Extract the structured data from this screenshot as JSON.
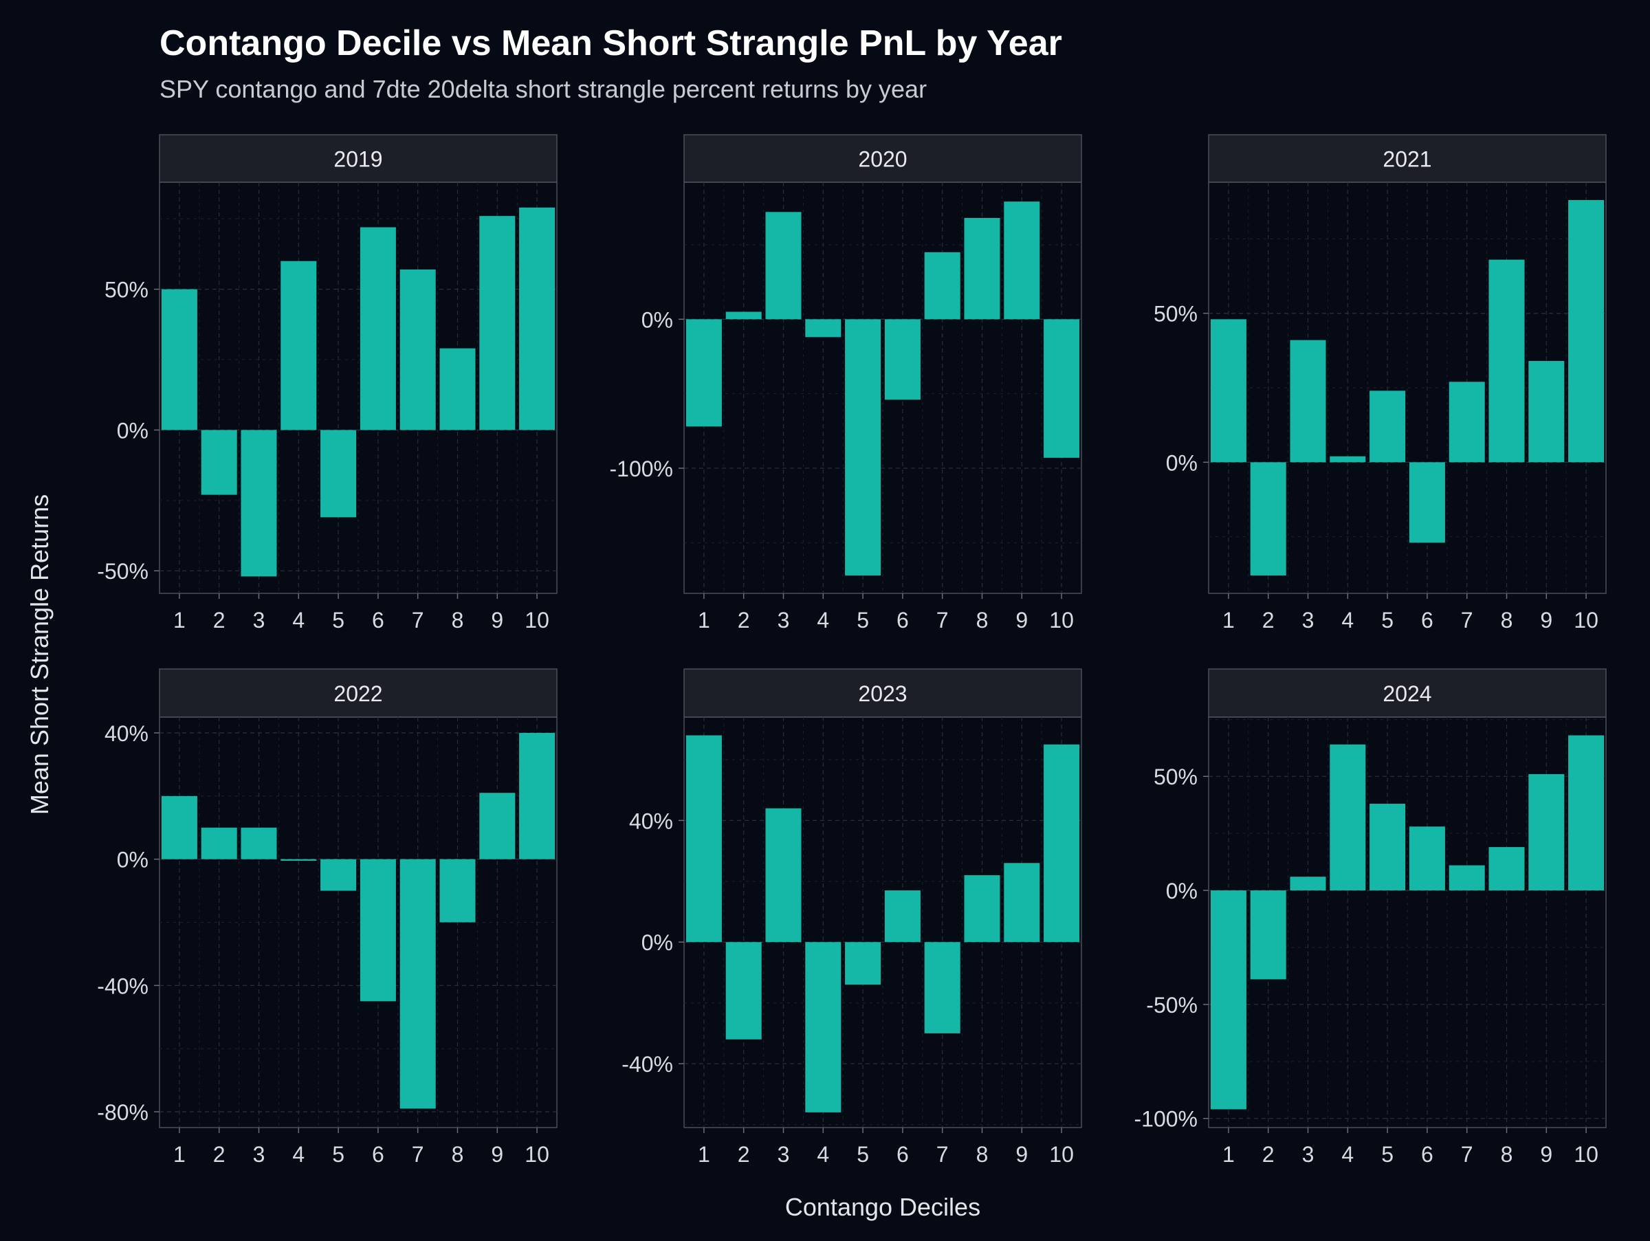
{
  "chart_data": {
    "type": "bar",
    "title": "Contango Decile vs Mean Short Strangle PnL by Year",
    "subtitle": "SPY contango and 7dte 20delta short strangle percent returns by year",
    "xlabel": "Contango Deciles",
    "ylabel": "Mean Short Strangle Returns",
    "categories": [
      "1",
      "2",
      "3",
      "4",
      "5",
      "6",
      "7",
      "8",
      "9",
      "10"
    ],
    "colors": {
      "bar": "#15b8a6",
      "background": "#060a14",
      "strip": "#1c1f27",
      "grid": "#2a2e38"
    },
    "grid": true,
    "panels": [
      {
        "name": "2019",
        "values": [
          50,
          -23,
          -52,
          60,
          -31,
          72,
          57,
          29,
          76,
          79
        ],
        "ylim": [
          -58,
          88
        ],
        "yticks": [
          -50,
          0,
          50
        ],
        "yticklabels": [
          "-50%",
          "0%",
          "50%"
        ]
      },
      {
        "name": "2020",
        "values": [
          -72,
          5,
          72,
          -12,
          -172,
          -54,
          45,
          68,
          79,
          -93
        ],
        "ylim": [
          -184,
          92
        ],
        "yticks": [
          -100,
          0
        ],
        "yticklabels": [
          "-100%",
          "0%"
        ]
      },
      {
        "name": "2021",
        "values": [
          48,
          -38,
          41,
          2,
          24,
          -27,
          27,
          68,
          34,
          88
        ],
        "ylim": [
          -44,
          94
        ],
        "yticks": [
          0,
          50
        ],
        "yticklabels": [
          "0%",
          "50%"
        ]
      },
      {
        "name": "2022",
        "values": [
          20,
          10,
          10,
          -0.5,
          -10,
          -45,
          -79,
          -20,
          21,
          40
        ],
        "ylim": [
          -85,
          45
        ],
        "yticks": [
          -80,
          -40,
          0,
          40
        ],
        "yticklabels": [
          "-80%",
          "-40%",
          "0%",
          "40%"
        ]
      },
      {
        "name": "2023",
        "values": [
          68,
          -32,
          44,
          -56,
          -14,
          17,
          -30,
          22,
          26,
          65
        ],
        "ylim": [
          -61,
          74
        ],
        "yticks": [
          -40,
          0,
          40
        ],
        "yticklabels": [
          "-40%",
          "0%",
          "40%"
        ]
      },
      {
        "name": "2024",
        "values": [
          -96,
          -39,
          6,
          64,
          38,
          28,
          11,
          19,
          51,
          68
        ],
        "ylim": [
          -104,
          76
        ],
        "yticks": [
          -100,
          -50,
          0,
          50
        ],
        "yticklabels": [
          "-100%",
          "-50%",
          "0%",
          "50%"
        ]
      }
    ]
  }
}
